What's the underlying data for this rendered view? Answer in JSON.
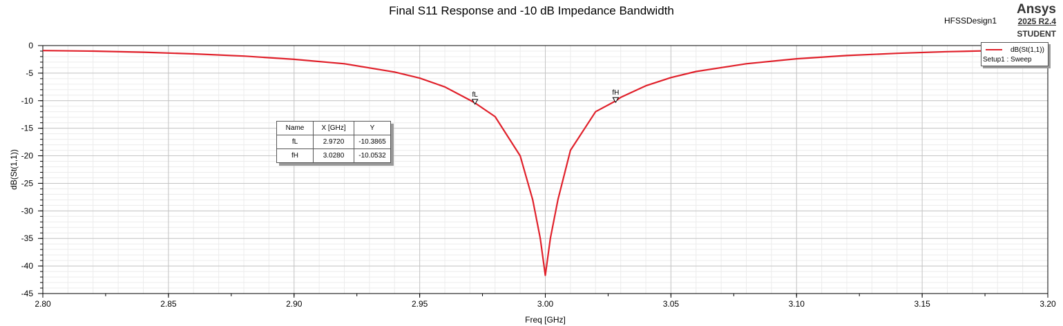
{
  "header": {
    "title": "Final S11 Response and -10 dB Impedance Bandwidth",
    "design_name": "HFSSDesign1",
    "brand_name": "Ansys",
    "brand_version": "2025 R2.4",
    "brand_edition": "STUDENT"
  },
  "legend": {
    "trace_label": "dB(St(1,1))",
    "setup_label": "Setup1 : Sweep"
  },
  "marker_table": {
    "headers": [
      "Name",
      "X [GHz]",
      "Y"
    ],
    "rows": [
      [
        "fL",
        "2.9720",
        "-10.3865"
      ],
      [
        "fH",
        "3.0280",
        "-10.0532"
      ]
    ]
  },
  "colors": {
    "trace": "#e0202a",
    "grid_major": "#c4c4c4",
    "grid_minor": "#ececec"
  },
  "chart_data": {
    "type": "line",
    "xlabel": "Freq [GHz]",
    "ylabel": "dB(St(1,1))",
    "xlim": [
      2.8,
      3.2
    ],
    "ylim": [
      -45,
      0
    ],
    "x_ticks": [
      "2.80",
      "2.85",
      "2.90",
      "2.95",
      "3.00",
      "3.05",
      "3.10",
      "3.15",
      "3.20"
    ],
    "y_ticks": [
      "0",
      "-5",
      "-10",
      "-15",
      "-20",
      "-25",
      "-30",
      "-35",
      "-40",
      "-45"
    ],
    "grid": true,
    "legend_position": "top-right",
    "series": [
      {
        "name": "dB(St(1,1))",
        "x": [
          2.8,
          2.82,
          2.84,
          2.86,
          2.88,
          2.9,
          2.92,
          2.94,
          2.95,
          2.96,
          2.97,
          2.972,
          2.98,
          2.99,
          2.995,
          2.998,
          3.0,
          3.002,
          3.005,
          3.01,
          3.02,
          3.028,
          3.03,
          3.04,
          3.05,
          3.06,
          3.08,
          3.1,
          3.12,
          3.14,
          3.16,
          3.18,
          3.2
        ],
        "y": [
          -0.9,
          -1.0,
          -1.2,
          -1.5,
          -1.9,
          -2.5,
          -3.3,
          -4.8,
          -5.9,
          -7.5,
          -9.9,
          -10.4,
          -12.9,
          -20.0,
          -28.0,
          -35.0,
          -41.7,
          -35.0,
          -28.0,
          -19.0,
          -12.0,
          -10.05,
          -9.4,
          -7.3,
          -5.8,
          -4.7,
          -3.3,
          -2.4,
          -1.8,
          -1.4,
          -1.1,
          -0.9,
          -0.8
        ]
      }
    ],
    "markers": [
      {
        "name": "fL",
        "x": 2.972,
        "y": -10.3865
      },
      {
        "name": "fH",
        "x": 3.028,
        "y": -10.0532
      }
    ]
  }
}
